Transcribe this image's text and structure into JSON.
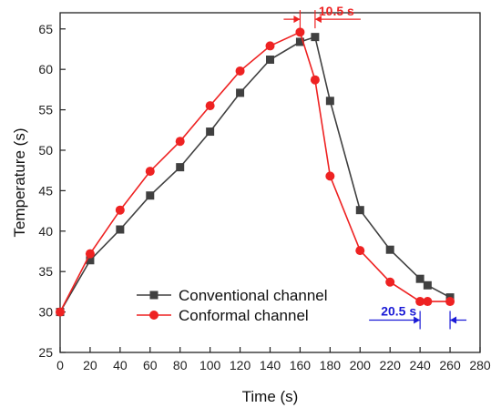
{
  "chart_data": {
    "type": "line",
    "title": "",
    "xlabel": "Time (s)",
    "ylabel": "Temperature (s)",
    "xlim": [
      0,
      280
    ],
    "ylim": [
      25,
      67
    ],
    "x_ticks": [
      0,
      20,
      40,
      60,
      80,
      100,
      120,
      140,
      160,
      180,
      200,
      220,
      240,
      260,
      280
    ],
    "y_ticks": [
      25,
      30,
      35,
      40,
      45,
      50,
      55,
      60,
      65
    ],
    "grid": false,
    "legend_position": "lower-left",
    "series": [
      {
        "name": "Conventional channel",
        "color": "#404040",
        "marker": "square",
        "points": [
          [
            0,
            30.0
          ],
          [
            20,
            36.4
          ],
          [
            40,
            40.2
          ],
          [
            60,
            44.4
          ],
          [
            80,
            47.9
          ],
          [
            100,
            52.3
          ],
          [
            120,
            57.1
          ],
          [
            140,
            61.2
          ],
          [
            160,
            63.4
          ],
          [
            170,
            64.0
          ],
          [
            180,
            56.1
          ],
          [
            200,
            42.6
          ],
          [
            220,
            37.7
          ],
          [
            240,
            34.1
          ],
          [
            245,
            33.3
          ],
          [
            260,
            31.8
          ]
        ]
      },
      {
        "name": "Conformal channel",
        "color": "#ee2222",
        "marker": "circle",
        "points": [
          [
            0,
            30.0
          ],
          [
            20,
            37.2
          ],
          [
            40,
            42.6
          ],
          [
            60,
            47.4
          ],
          [
            80,
            51.1
          ],
          [
            100,
            55.5
          ],
          [
            120,
            59.8
          ],
          [
            140,
            62.9
          ],
          [
            160,
            64.6
          ],
          [
            170,
            58.7
          ],
          [
            180,
            46.8
          ],
          [
            200,
            37.6
          ],
          [
            220,
            33.7
          ],
          [
            240,
            31.3
          ],
          [
            245,
            31.3
          ],
          [
            260,
            31.3
          ]
        ]
      }
    ],
    "annotations": [
      {
        "text": "10.5 s",
        "color": "#ee2222",
        "from_x": 160,
        "to_x": 170,
        "at_y": 66.2
      },
      {
        "text": "20.5 s",
        "color": "#1a1ad6",
        "from_x": 240,
        "to_x": 260,
        "at_y": 29.0
      }
    ]
  }
}
